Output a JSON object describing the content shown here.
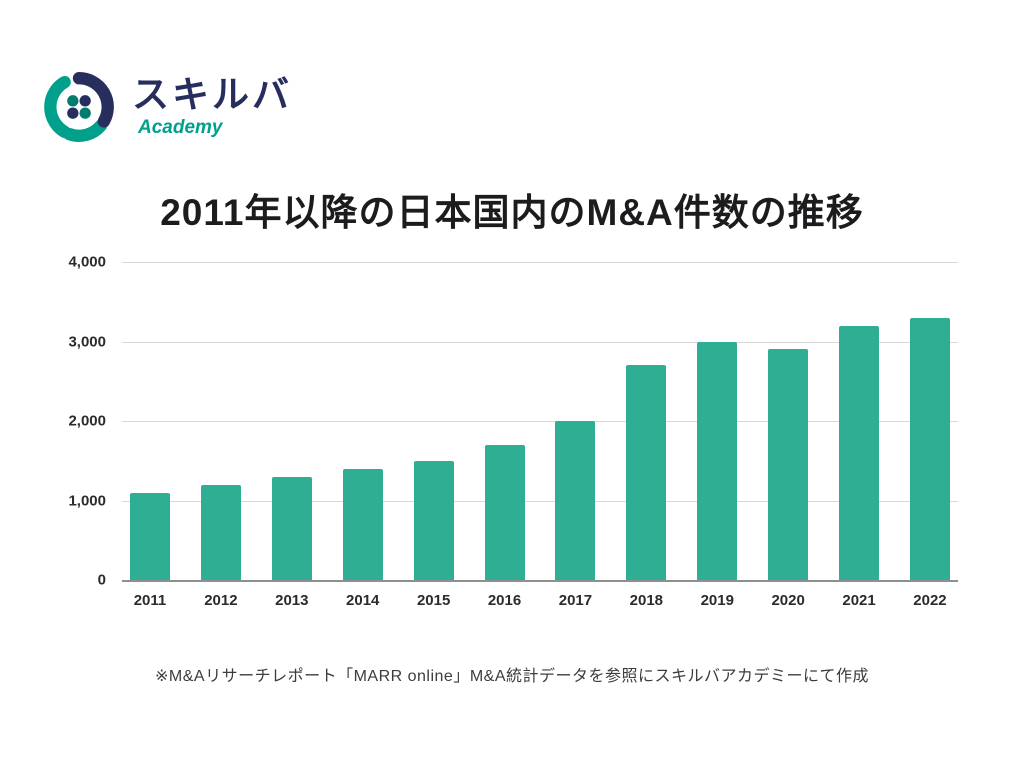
{
  "brand": {
    "name": "スキルバ",
    "subtitle": "Academy",
    "colors": {
      "navy": "#272e5e",
      "teal": "#00a08c"
    }
  },
  "chart_data": {
    "type": "bar",
    "title": "2011年以降の日本国内のM&A件数の推移",
    "categories": [
      "2011",
      "2012",
      "2013",
      "2014",
      "2015",
      "2016",
      "2017",
      "2018",
      "2019",
      "2020",
      "2021",
      "2022"
    ],
    "values": [
      1100,
      1200,
      1300,
      1400,
      1500,
      1700,
      2000,
      2700,
      3000,
      2900,
      3200,
      3300
    ],
    "ylim": [
      0,
      4000
    ],
    "yticks": [
      0,
      1000,
      2000,
      3000,
      4000
    ],
    "ytick_labels": [
      "0",
      "1,000",
      "2,000",
      "3,000",
      "4,000"
    ],
    "xlabel": "",
    "ylabel": "",
    "grid": true,
    "legend": "none",
    "bar_color": "#2fae94"
  },
  "footnote": "※M&Aリサーチレポート「MARR online」M&A統計データを参照にスキルバアカデミーにて作成"
}
